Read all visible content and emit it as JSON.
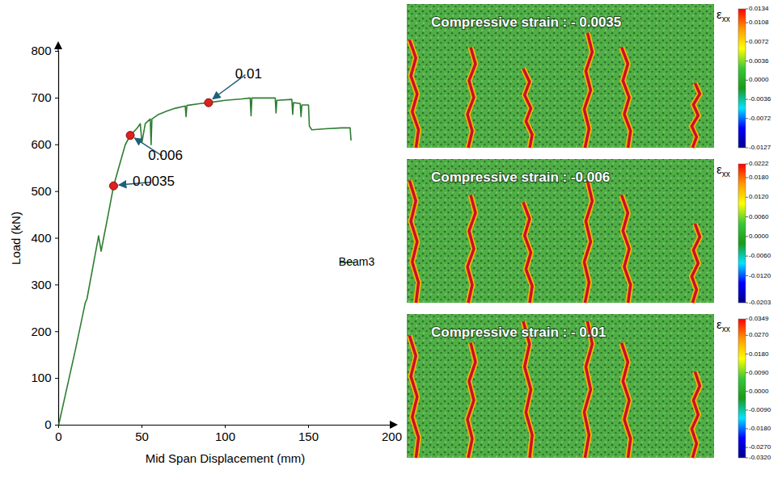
{
  "chart_data": {
    "type": "line",
    "x_label": "Mid Span Displacement (mm)",
    "y_label": "Load (kN)",
    "xlim": [
      0,
      200
    ],
    "ylim": [
      0,
      800
    ],
    "xticks": [
      0,
      50,
      100,
      150,
      200
    ],
    "yticks": [
      0,
      100,
      200,
      300,
      400,
      500,
      600,
      700,
      800
    ],
    "legend": "right",
    "x": [
      0,
      10,
      16,
      17,
      24,
      25.5,
      27,
      30,
      33,
      36,
      40,
      43,
      47,
      49,
      50,
      52,
      55,
      55.5,
      56,
      60,
      65,
      70,
      76,
      76.5,
      77,
      85,
      90,
      100,
      110,
      115,
      115.5,
      116,
      125,
      130,
      130.5,
      131,
      140,
      140.5,
      141,
      145,
      145.5,
      146,
      150,
      150.5,
      152,
      160,
      170,
      175,
      175.5
    ],
    "series": [
      {
        "name": "Beam3",
        "color": "#2e7d32",
        "values": [
          0,
          160,
          262,
          270,
          405,
          372,
          400,
          455,
          512,
          550,
          600,
          620,
          635,
          645,
          605,
          645,
          655,
          600,
          655,
          665,
          672,
          678,
          683,
          660,
          684,
          688,
          690,
          695,
          698,
          700,
          662,
          700,
          700,
          700,
          668,
          695,
          697,
          665,
          690,
          688,
          660,
          685,
          685,
          640,
          632,
          634,
          636,
          636,
          610
        ]
      }
    ],
    "annotations": [
      {
        "text": "0.0035",
        "x": 33,
        "y": 512
      },
      {
        "text": "0.006",
        "x": 43,
        "y": 620
      },
      {
        "text": "0.01",
        "x": 90,
        "y": 690
      }
    ]
  },
  "strain_maps": [
    {
      "title": "Compressive strain : - 0.0035",
      "colorbar_label": "εxx",
      "colorbar_range": [
        -0.0127,
        0.0134
      ],
      "colorbar_ticks": [
        0.0134,
        {
          "value": 0.0108,
          "label": "0.0108"
        },
        0.0072,
        0.0036,
        {
          "value": 0,
          "label": "0.0000"
        },
        -0.0036,
        -0.0072,
        -0.0127
      ]
    },
    {
      "title": "Compressive strain : -0.006",
      "colorbar_label": "εxx",
      "colorbar_range": [
        -0.0203,
        0.0222
      ],
      "colorbar_ticks": [
        0.0222,
        {
          "value": 0.018,
          "label": "0.0180"
        },
        {
          "value": 0.012,
          "label": "0.0120"
        },
        {
          "value": 0.006,
          "label": "0.0060"
        },
        {
          "value": 0,
          "label": "0.0000"
        },
        {
          "value": -0.006,
          "label": "-0.0060"
        },
        {
          "value": -0.012,
          "label": "-0.0120"
        },
        -0.0203
      ]
    },
    {
      "title": "Compressive strain : - 0.01",
      "colorbar_label": "εxx",
      "colorbar_range": [
        -0.032,
        0.0349
      ],
      "colorbar_ticks": [
        0.0349,
        {
          "value": 0.027,
          "label": "0.0270"
        },
        {
          "value": 0.018,
          "label": "0.0180"
        },
        {
          "value": 0.009,
          "label": "0.0090"
        },
        {
          "value": 0,
          "label": "0.0000"
        },
        {
          "value": -0.009,
          "label": "-0.0090"
        },
        {
          "value": -0.018,
          "label": "-0.0180"
        },
        {
          "value": -0.027,
          "label": "-0.0270"
        },
        {
          "value": -0.032,
          "label": "-0.0320"
        }
      ]
    }
  ]
}
